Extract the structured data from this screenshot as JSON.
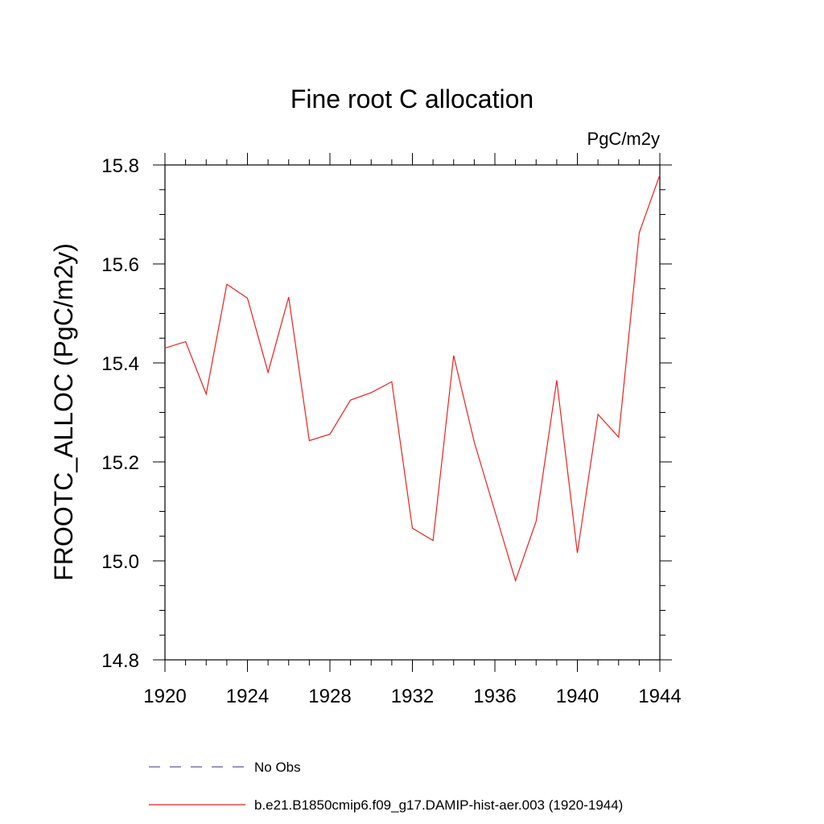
{
  "chart_data": {
    "type": "line",
    "title": "Fine root C allocation",
    "units_label": "PgC/m2y",
    "xlabel": "",
    "ylabel": "FROOTC_ALLOC  (PgC/m2y)",
    "xlim": [
      1920,
      1944
    ],
    "ylim": [
      14.8,
      15.8
    ],
    "x_ticks": [
      1920,
      1924,
      1928,
      1932,
      1936,
      1940,
      1944
    ],
    "y_ticks": [
      14.8,
      15.0,
      15.2,
      15.4,
      15.6,
      15.8
    ],
    "y_tick_labels": [
      "14.8",
      "15.0",
      "15.2",
      "15.4",
      "15.6",
      "15.8"
    ],
    "x_minor_step": 1,
    "y_minor_step": 0.05,
    "grid": false,
    "legend_position": "bottom",
    "series": [
      {
        "name": "b.e21.B1850cmip6.f09_g17.DAMIP-hist-aer.003 (1920-1944)",
        "color": "#e8221e",
        "style": "solid",
        "x": [
          1920,
          1921,
          1922,
          1923,
          1924,
          1925,
          1926,
          1927,
          1928,
          1929,
          1930,
          1931,
          1932,
          1933,
          1934,
          1935,
          1936,
          1937,
          1938,
          1939,
          1940,
          1941,
          1942,
          1943,
          1944
        ],
        "y": [
          15.43,
          15.443,
          15.337,
          15.559,
          15.531,
          15.381,
          15.533,
          15.243,
          15.256,
          15.325,
          15.34,
          15.362,
          15.066,
          15.041,
          15.415,
          15.24,
          15.1,
          14.96,
          15.08,
          15.365,
          15.016,
          15.296,
          15.25,
          15.663,
          15.78
        ]
      }
    ],
    "legend": [
      {
        "label": "No Obs",
        "color": "#5a5aa0",
        "style": "dashed"
      },
      {
        "label": "b.e21.B1850cmip6.f09_g17.DAMIP-hist-aer.003 (1920-1944)",
        "color": "#e8221e",
        "style": "solid"
      }
    ]
  }
}
